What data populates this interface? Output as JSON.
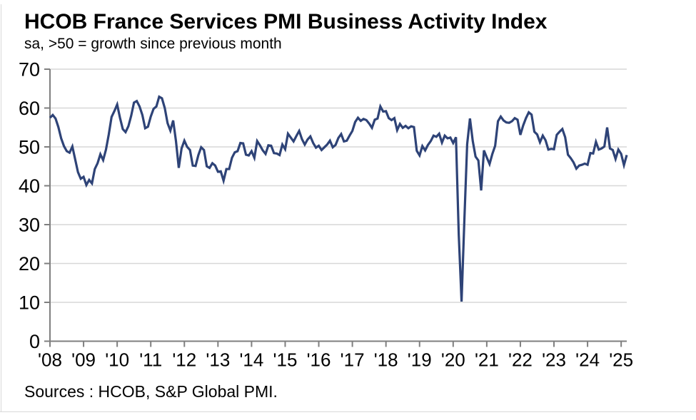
{
  "page": {
    "title": "HCOB France Services PMI Business Activity Index",
    "subtitle": "sa, >50 = growth since previous month",
    "source_note": "Sources : HCOB, S&P Global PMI."
  },
  "colors": {
    "line": "#2e4377",
    "grid": "#d7d7d7",
    "axis": "#7f7f7f",
    "text": "#000000",
    "frame": "#d9d9d9"
  },
  "chart_data": {
    "type": "line",
    "title": "HCOB France Services PMI Business Activity Index",
    "subtitle": "sa, >50 = growth since previous month",
    "source": "Sources : HCOB, S&P Global PMI.",
    "grid": "horizontal",
    "legend": "none",
    "ylim": [
      0,
      70
    ],
    "y_ticks": [
      0,
      10,
      20,
      30,
      40,
      50,
      60,
      70
    ],
    "x_tick_labels": [
      "'08",
      "'09",
      "'10",
      "'11",
      "'12",
      "'13",
      "'14",
      "'15",
      "'16",
      "'17",
      "'18",
      "'19",
      "'20",
      "'21",
      "'22",
      "'23",
      "'24",
      "'25"
    ],
    "x_ticks_every_months": 12,
    "reference_level": 50,
    "series": [
      {
        "name": "France Services PMI Business Activity Index",
        "frequency": "monthly",
        "start": "2008-01",
        "end": "2025-03",
        "values": [
          57.5,
          58.2,
          57.3,
          55.1,
          52.2,
          50.2,
          48.9,
          48.5,
          50.1,
          46.8,
          43.5,
          41.8,
          42.3,
          40.2,
          41.5,
          40.6,
          44.3,
          45.8,
          48.1,
          46.6,
          49.3,
          53.2,
          57.7,
          59.2,
          60.9,
          57.5,
          54.6,
          53.8,
          55.3,
          58.0,
          61.4,
          61.8,
          60.4,
          58.2,
          54.8,
          55.2,
          57.8,
          59.8,
          60.4,
          62.9,
          62.5,
          60.0,
          56.1,
          54.2,
          56.8,
          51.5,
          44.6,
          49.6,
          51.6,
          50.0,
          49.2,
          45.2,
          45.1,
          47.9,
          49.9,
          49.2,
          45.0,
          44.6,
          45.8,
          45.2,
          43.6,
          43.7,
          41.3,
          44.3,
          44.3,
          47.2,
          48.6,
          48.9,
          51.0,
          50.9,
          48.0,
          47.8,
          48.9,
          47.2,
          51.5,
          50.4,
          49.1,
          48.2,
          50.4,
          50.3,
          48.4,
          48.3,
          47.9,
          50.6,
          49.4,
          53.4,
          52.4,
          51.4,
          52.8,
          54.1,
          52.0,
          50.6,
          51.9,
          52.7,
          51.0,
          49.8,
          50.3,
          49.2,
          49.9,
          50.6,
          51.6,
          49.9,
          50.5,
          52.3,
          53.3,
          51.4,
          51.6,
          52.9,
          54.1,
          56.4,
          57.5,
          56.7,
          57.2,
          56.9,
          56.0,
          54.9,
          57.0,
          57.3,
          60.4,
          59.1,
          59.2,
          57.4,
          56.9,
          57.4,
          54.3,
          55.9,
          54.9,
          55.4,
          54.8,
          55.3,
          55.1,
          49.0,
          47.8,
          50.2,
          49.1,
          50.5,
          51.5,
          52.9,
          52.6,
          53.4,
          51.1,
          52.9,
          52.2,
          52.4,
          51.0,
          52.5,
          27.4,
          10.2,
          31.1,
          50.7,
          57.3,
          51.5,
          47.5,
          46.5,
          38.8,
          49.1,
          47.3,
          45.6,
          48.2,
          50.3,
          56.6,
          57.8,
          56.8,
          56.3,
          56.2,
          56.6,
          57.4,
          57.0,
          53.1,
          55.5,
          57.4,
          58.9,
          58.3,
          53.9,
          53.2,
          51.2,
          52.9,
          51.7,
          49.3,
          49.5,
          49.4,
          53.1,
          53.9,
          54.6,
          52.5,
          48.0,
          47.1,
          46.0,
          44.4,
          45.2,
          45.4,
          45.7,
          45.4,
          48.4,
          48.3,
          51.3,
          49.3,
          49.6,
          50.1,
          55.0,
          49.6,
          49.2,
          46.9,
          49.3,
          48.2,
          45.3,
          47.9
        ]
      }
    ]
  }
}
